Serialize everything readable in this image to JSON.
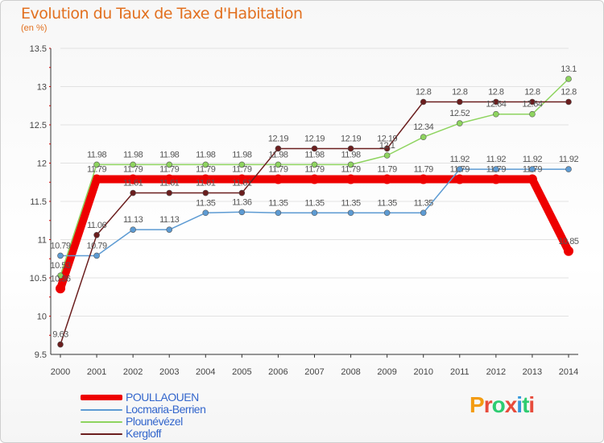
{
  "title": "Evolution du Taux de Taxe d'Habitation",
  "subtitle": "(en %)",
  "brand": {
    "letters": [
      "P",
      "r",
      "o",
      "x",
      "i",
      "t",
      "i"
    ],
    "colors": [
      "#f39c12",
      "#e74c3c",
      "#2ecc71",
      "#e74c3c",
      "#3498db",
      "#2ecc71",
      "#e74c3c"
    ]
  },
  "chart_data": {
    "type": "line",
    "title": "Evolution du Taux de Taxe d'Habitation",
    "ylabel": "(en %)",
    "xlabel": "",
    "ylim": [
      9.5,
      13.5
    ],
    "yticks": [
      9.5,
      10,
      10.5,
      11,
      11.5,
      12,
      12.5,
      13,
      13.5
    ],
    "ytick_labels": [
      "9.5",
      "10",
      "10.5",
      "11",
      "11.5",
      "12",
      "12.5",
      "13",
      "13.5"
    ],
    "categories": [
      "2000",
      "2001",
      "2002",
      "2003",
      "2004",
      "2005",
      "2006",
      "2007",
      "2008",
      "2009",
      "2010",
      "2011",
      "2012",
      "2013",
      "2014"
    ],
    "series": [
      {
        "name": "POULLAOUEN",
        "color": "#ee0000",
        "thick": true,
        "values": [
          10.36,
          11.79,
          11.79,
          11.79,
          11.79,
          11.79,
          11.79,
          11.79,
          11.79,
          11.79,
          11.79,
          11.79,
          11.79,
          11.79,
          10.85
        ],
        "labels": [
          "10.36",
          "11.79",
          "11.79",
          "11.79",
          "11.79",
          "11.79",
          "11.79",
          "11.79",
          "11.79",
          "11.79",
          "11.79",
          "11.79",
          "11.79",
          "11.79",
          "10.85"
        ]
      },
      {
        "name": "Locmaria-Berrien",
        "color": "#5d9bd3",
        "values": [
          10.79,
          10.79,
          11.13,
          11.13,
          11.35,
          11.36,
          11.35,
          11.35,
          11.35,
          11.35,
          11.35,
          11.92,
          11.92,
          11.92,
          11.92
        ],
        "labels": [
          "10.79",
          "10.79",
          "11.13",
          "11.13",
          "11.35",
          "11.36",
          "11.35",
          "11.35",
          "11.35",
          "11.35",
          "11.35",
          "11.92",
          "11.92",
          "11.92",
          "11.92"
        ]
      },
      {
        "name": "Plounévézel",
        "color": "#8ed45f",
        "values": [
          10.53,
          11.98,
          11.98,
          11.98,
          11.98,
          11.98,
          11.98,
          11.98,
          11.98,
          12.1,
          12.34,
          12.52,
          12.64,
          12.64,
          13.1
        ],
        "labels": [
          "10.53",
          "11.98",
          "11.98",
          "11.98",
          "11.98",
          "11.98",
          "11.98",
          "11.98",
          "11.98",
          "12.1",
          "12.34",
          "12.52",
          "12.64",
          "12.64",
          "13.1"
        ]
      },
      {
        "name": "Kergloff",
        "color": "#6b1e1e",
        "values": [
          9.63,
          11.06,
          11.61,
          11.61,
          11.61,
          11.61,
          12.19,
          12.19,
          12.19,
          12.19,
          12.8,
          12.8,
          12.8,
          12.8,
          12.8
        ],
        "labels": [
          "9.63",
          "11.06",
          "11.61",
          "11.61",
          "11.61",
          "11.61",
          "12.19",
          "12.19",
          "12.19",
          "12.19",
          "12.8",
          "12.8",
          "12.8",
          "12.8",
          "12.8"
        ]
      }
    ]
  }
}
